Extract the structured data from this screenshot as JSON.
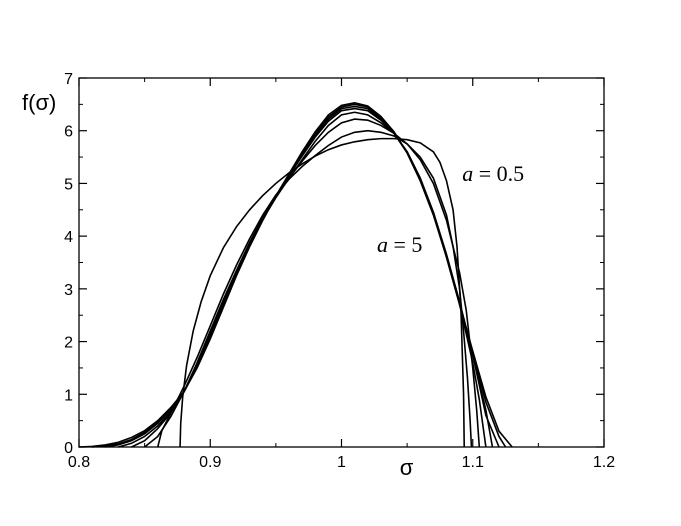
{
  "chart_data": {
    "type": "line",
    "title": "",
    "xlabel": "σ",
    "ylabel": "f(σ)",
    "xlim": [
      0.8,
      1.2
    ],
    "ylim": [
      0,
      7
    ],
    "xticks": [
      0.8,
      0.9,
      1.0,
      1.1,
      1.2
    ],
    "xtick_labels": [
      "0.8",
      "0.9",
      "1",
      "1.1",
      "1.2"
    ],
    "yticks": [
      0,
      1,
      2,
      3,
      4,
      5,
      6,
      7
    ],
    "ytick_labels": [
      "0",
      "1",
      "2",
      "3",
      "4",
      "5",
      "6",
      "7"
    ],
    "grid": false,
    "legend": "none",
    "annotations": [
      {
        "var": "a",
        "rest": " = 0.5",
        "x": 1.092,
        "y": 5.05
      },
      {
        "var": "a",
        "rest": " = 5",
        "x": 1.027,
        "y": 3.7
      }
    ],
    "series": [
      {
        "x": [
          0.877,
          0.8775,
          0.879,
          0.882,
          0.887,
          0.893,
          0.9,
          0.91,
          0.92,
          0.93,
          0.94,
          0.95,
          0.96,
          0.97,
          0.98,
          0.99,
          1.0,
          1.01,
          1.02,
          1.03,
          1.04,
          1.05,
          1.06,
          1.07,
          1.075,
          1.08,
          1.085,
          1.088,
          1.091,
          1.093,
          1.0935
        ],
        "y": [
          0,
          0.45,
          0.95,
          1.55,
          2.2,
          2.75,
          3.25,
          3.78,
          4.18,
          4.5,
          4.77,
          5.0,
          5.2,
          5.37,
          5.52,
          5.64,
          5.73,
          5.79,
          5.83,
          5.85,
          5.85,
          5.83,
          5.77,
          5.6,
          5.4,
          5.05,
          4.5,
          3.8,
          2.6,
          1.0,
          0
        ]
      },
      {
        "x": [
          0.86,
          0.863,
          0.87,
          0.88,
          0.89,
          0.9,
          0.91,
          0.92,
          0.93,
          0.94,
          0.95,
          0.96,
          0.97,
          0.98,
          0.99,
          1.0,
          1.01,
          1.02,
          1.03,
          1.04,
          1.05,
          1.06,
          1.07,
          1.08,
          1.085,
          1.09,
          1.093,
          1.096,
          1.098,
          1.099
        ],
        "y": [
          0,
          0.3,
          0.65,
          1.15,
          1.7,
          2.3,
          2.9,
          3.45,
          3.95,
          4.4,
          4.78,
          5.08,
          5.32,
          5.53,
          5.72,
          5.88,
          5.97,
          6.0,
          5.97,
          5.9,
          5.75,
          5.5,
          5.1,
          4.4,
          3.8,
          3.0,
          2.2,
          1.3,
          0.5,
          0
        ]
      },
      {
        "x": [
          0.85,
          0.86,
          0.87,
          0.88,
          0.89,
          0.9,
          0.91,
          0.92,
          0.93,
          0.94,
          0.95,
          0.96,
          0.97,
          0.98,
          0.99,
          1.0,
          1.01,
          1.02,
          1.03,
          1.04,
          1.05,
          1.06,
          1.07,
          1.08,
          1.09,
          1.095,
          1.1,
          1.103,
          1.105
        ],
        "y": [
          0,
          0.2,
          0.58,
          1.05,
          1.6,
          2.2,
          2.8,
          3.35,
          3.88,
          4.35,
          4.75,
          5.1,
          5.42,
          5.72,
          5.97,
          6.15,
          6.22,
          6.2,
          6.1,
          5.95,
          5.75,
          5.45,
          5.0,
          4.3,
          3.3,
          2.6,
          1.5,
          0.7,
          0
        ]
      },
      {
        "x": [
          0.84,
          0.85,
          0.86,
          0.87,
          0.88,
          0.89,
          0.9,
          0.91,
          0.92,
          0.93,
          0.94,
          0.95,
          0.96,
          0.97,
          0.98,
          0.99,
          1.0,
          1.01,
          1.02,
          1.03,
          1.04,
          1.05,
          1.06,
          1.07,
          1.08,
          1.09,
          1.1,
          1.105,
          1.11
        ],
        "y": [
          0,
          0.12,
          0.35,
          0.65,
          1.05,
          1.55,
          2.15,
          2.75,
          3.3,
          3.85,
          4.32,
          4.73,
          5.1,
          5.45,
          5.8,
          6.1,
          6.3,
          6.35,
          6.3,
          6.15,
          5.95,
          5.6,
          5.1,
          4.45,
          3.6,
          2.7,
          1.6,
          0.9,
          0
        ]
      },
      {
        "x": [
          0.83,
          0.84,
          0.85,
          0.86,
          0.87,
          0.88,
          0.89,
          0.9,
          0.91,
          0.92,
          0.93,
          0.94,
          0.95,
          0.96,
          0.97,
          0.98,
          0.99,
          1.0,
          1.01,
          1.02,
          1.03,
          1.04,
          1.05,
          1.06,
          1.07,
          1.08,
          1.09,
          1.1,
          1.11,
          1.115
        ],
        "y": [
          0,
          0.07,
          0.2,
          0.4,
          0.68,
          1.05,
          1.55,
          2.12,
          2.72,
          3.3,
          3.85,
          4.32,
          4.75,
          5.15,
          5.52,
          5.88,
          6.18,
          6.38,
          6.42,
          6.38,
          6.2,
          5.95,
          5.6,
          5.1,
          4.45,
          3.65,
          2.75,
          1.75,
          0.7,
          0
        ]
      },
      {
        "x": [
          0.82,
          0.83,
          0.84,
          0.85,
          0.86,
          0.87,
          0.88,
          0.89,
          0.9,
          0.91,
          0.92,
          0.93,
          0.94,
          0.95,
          0.96,
          0.97,
          0.98,
          0.99,
          1.0,
          1.01,
          1.02,
          1.03,
          1.04,
          1.05,
          1.06,
          1.07,
          1.08,
          1.09,
          1.1,
          1.11,
          1.12
        ],
        "y": [
          0,
          0.04,
          0.12,
          0.25,
          0.45,
          0.72,
          1.05,
          1.55,
          2.12,
          2.72,
          3.3,
          3.85,
          4.32,
          4.75,
          5.15,
          5.55,
          5.92,
          6.22,
          6.42,
          6.46,
          6.42,
          6.22,
          5.95,
          5.58,
          5.08,
          4.45,
          3.65,
          2.75,
          1.75,
          0.6,
          0
        ]
      },
      {
        "x": [
          0.81,
          0.82,
          0.83,
          0.84,
          0.85,
          0.86,
          0.87,
          0.88,
          0.89,
          0.9,
          0.91,
          0.92,
          0.93,
          0.94,
          0.95,
          0.96,
          0.97,
          0.98,
          0.99,
          1.0,
          1.01,
          1.02,
          1.03,
          1.04,
          1.05,
          1.06,
          1.07,
          1.08,
          1.09,
          1.1,
          1.11,
          1.12,
          1.125
        ],
        "y": [
          0,
          0.02,
          0.06,
          0.14,
          0.28,
          0.47,
          0.73,
          1.05,
          1.52,
          2.08,
          2.68,
          3.28,
          3.83,
          4.32,
          4.76,
          5.17,
          5.57,
          5.95,
          6.26,
          6.45,
          6.5,
          6.45,
          6.25,
          5.97,
          5.58,
          5.06,
          4.42,
          3.62,
          2.72,
          1.8,
          0.85,
          0.2,
          0
        ]
      },
      {
        "x": [
          0.8,
          0.81,
          0.82,
          0.83,
          0.84,
          0.85,
          0.86,
          0.87,
          0.88,
          0.89,
          0.9,
          0.91,
          0.92,
          0.93,
          0.94,
          0.95,
          0.96,
          0.97,
          0.98,
          0.99,
          1.0,
          1.01,
          1.02,
          1.03,
          1.04,
          1.05,
          1.06,
          1.07,
          1.08,
          1.09,
          1.1,
          1.11,
          1.12,
          1.13
        ],
        "y": [
          0,
          0.01,
          0.04,
          0.09,
          0.18,
          0.31,
          0.5,
          0.75,
          1.05,
          1.5,
          2.05,
          2.65,
          3.25,
          3.8,
          4.3,
          4.76,
          5.18,
          5.6,
          5.98,
          6.3,
          6.48,
          6.53,
          6.47,
          6.27,
          5.98,
          5.58,
          5.05,
          4.4,
          3.6,
          2.7,
          1.82,
          0.95,
          0.3,
          0
        ]
      }
    ]
  }
}
